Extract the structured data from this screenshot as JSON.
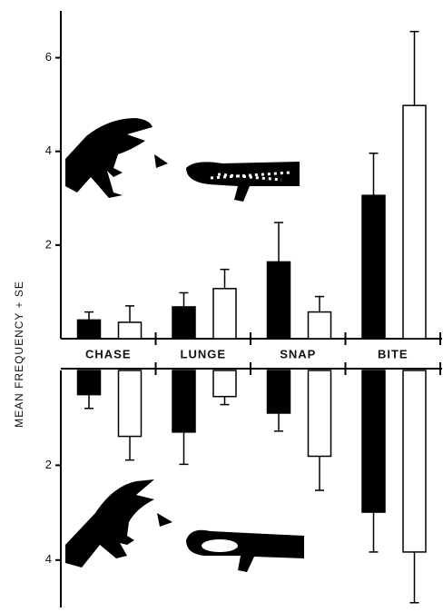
{
  "chart_data": [
    {
      "type": "bar",
      "y_label": "MEAN FREQUENCY + SE",
      "categories": [
        "CHASE",
        "LUNGE",
        "SNAP",
        "BITE"
      ],
      "series": [
        {
          "color": "#000000",
          "values": [
            0.4,
            0.68,
            1.64,
            3.06
          ],
          "errors": [
            0.17,
            0.3,
            0.84,
            0.9
          ]
        },
        {
          "color": "#ffffff",
          "values": [
            0.35,
            1.07,
            0.57,
            4.98
          ],
          "errors": [
            0.35,
            0.41,
            0.33,
            1.58
          ]
        }
      ],
      "ylim": [
        0,
        7
      ],
      "yticks": [
        2,
        4,
        6
      ]
    },
    {
      "type": "bar",
      "inverted": true,
      "series": [
        {
          "color": "#000000",
          "values": [
            0.51,
            1.3,
            0.9,
            2.99
          ],
          "errors": [
            0.29,
            0.68,
            0.38,
            0.84
          ]
        },
        {
          "color": "#ffffff",
          "values": [
            1.39,
            0.55,
            1.81,
            3.83
          ],
          "errors": [
            0.5,
            0.17,
            0.72,
            1.07
          ]
        }
      ],
      "ylim": [
        0,
        5
      ],
      "yticks": [
        2,
        4
      ]
    }
  ]
}
